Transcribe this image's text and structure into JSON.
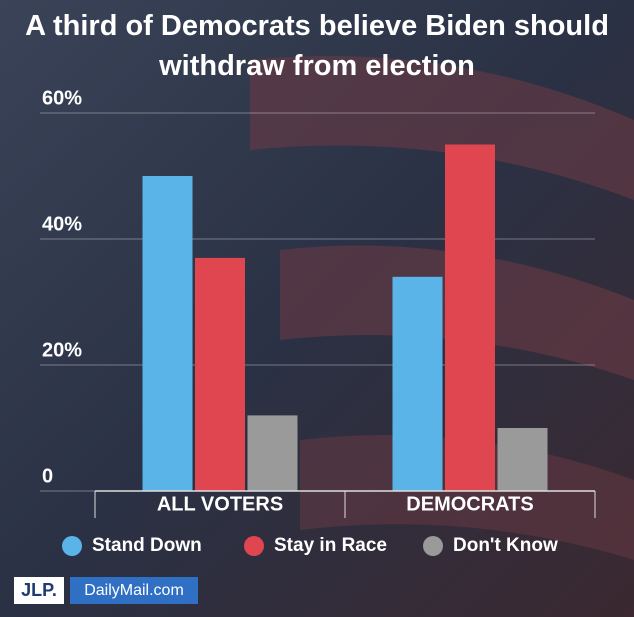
{
  "chart_data": {
    "type": "bar",
    "title": "A third of Democrats believe Biden should withdraw from election",
    "categories": [
      "ALL VOTERS",
      "DEMOCRATS"
    ],
    "series": [
      {
        "name": "Stand Down",
        "color": "#5ab4e8",
        "values": [
          50,
          34
        ]
      },
      {
        "name": "Stay in Race",
        "color": "#e0464f",
        "values": [
          37,
          55
        ]
      },
      {
        "name": "Don't Know",
        "color": "#9a9a9a",
        "values": [
          12,
          10
        ]
      }
    ],
    "ylim": [
      0,
      60
    ],
    "yticks": [
      0,
      {
        "value": 20,
        "label": "20%"
      },
      {
        "value": 40,
        "label": "40%"
      },
      {
        "value": 60,
        "label": "60%"
      }
    ],
    "grid": true,
    "logos": [
      "JLP.",
      "DailyMail.com"
    ]
  }
}
